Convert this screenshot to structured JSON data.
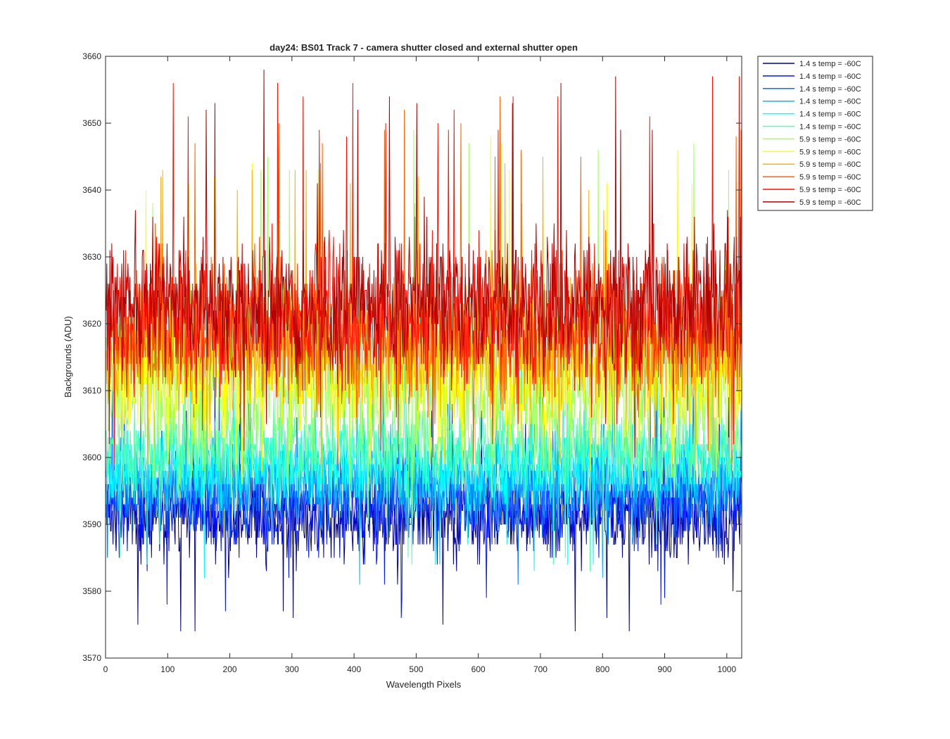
{
  "chart_data": {
    "type": "line",
    "title": "day24: BS01  Track 7 - camera shutter closed and external shutter open",
    "xlabel": "Wavelength Pixels",
    "ylabel": "Backgrounds (ADU)",
    "xlim": [
      0,
      1024
    ],
    "ylim": [
      3570,
      3660
    ],
    "xticks": [
      "0",
      "100",
      "200",
      "300",
      "400",
      "500",
      "600",
      "700",
      "800",
      "900",
      "1000"
    ],
    "yticks": [
      "3570",
      "3580",
      "3590",
      "3600",
      "3610",
      "3620",
      "3630",
      "3640",
      "3650",
      "3660"
    ],
    "grid": false,
    "legend_position": "outside-top-right",
    "series": [
      {
        "name": "1.4 s temp = -60C",
        "color": "#00008F",
        "mean": 3591,
        "min": 3572,
        "max": 3610
      },
      {
        "name": "1.4 s temp = -60C",
        "color": "#0014FF",
        "mean": 3593,
        "min": 3576,
        "max": 3612
      },
      {
        "name": "1.4 s temp = -60C",
        "color": "#0070FF",
        "mean": 3595,
        "min": 3578,
        "max": 3614
      },
      {
        "name": "1.4 s temp = -60C",
        "color": "#00B8FF",
        "mean": 3597,
        "min": 3580,
        "max": 3615
      },
      {
        "name": "1.4 s temp = -60C",
        "color": "#00FFFF",
        "mean": 3599,
        "min": 3582,
        "max": 3616
      },
      {
        "name": "1.4 s temp = -60C",
        "color": "#50FFAF",
        "mean": 3601,
        "min": 3583,
        "max": 3618
      },
      {
        "name": "5.9 s temp = -60C",
        "color": "#A0FF5F",
        "mean": 3610,
        "min": 3590,
        "max": 3650
      },
      {
        "name": "5.9 s temp = -60C",
        "color": "#FFFF00",
        "mean": 3613,
        "min": 3592,
        "max": 3651
      },
      {
        "name": "5.9 s temp = -60C",
        "color": "#FFB000",
        "mean": 3616,
        "min": 3594,
        "max": 3646
      },
      {
        "name": "5.9 s temp = -60C",
        "color": "#FF6000",
        "mean": 3619,
        "min": 3596,
        "max": 3654
      },
      {
        "name": "5.9 s temp = -60C",
        "color": "#FF1000",
        "mean": 3621,
        "min": 3598,
        "max": 3659
      },
      {
        "name": "5.9 s temp = -60C",
        "color": "#B00000",
        "mean": 3623,
        "min": 3600,
        "max": 3658
      }
    ]
  }
}
